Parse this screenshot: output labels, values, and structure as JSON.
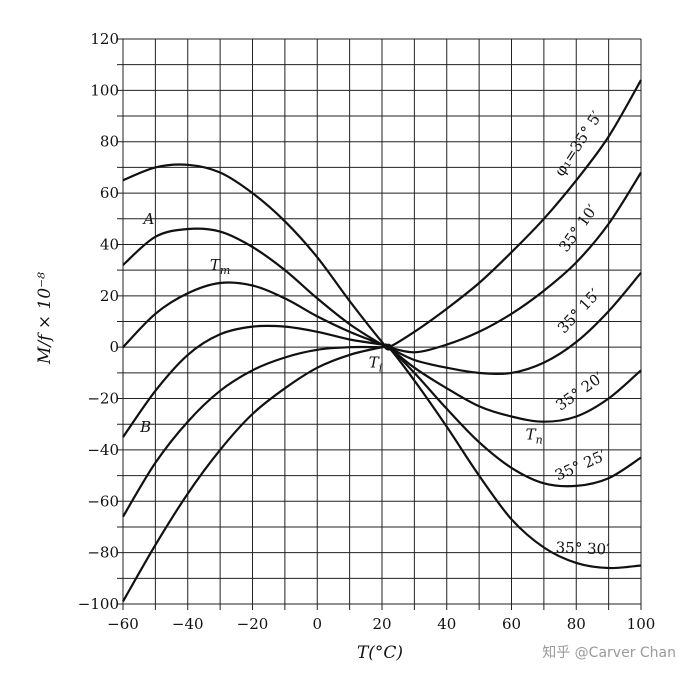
{
  "chart_data": {
    "type": "line",
    "title": "",
    "xlabel": "T(°C)",
    "ylabel": "M/f × 10⁻⁸",
    "xlim": [
      -60,
      100
    ],
    "ylim": [
      -100,
      120
    ],
    "x_ticks": [
      -60,
      -40,
      -20,
      0,
      20,
      40,
      60,
      80,
      100
    ],
    "x_tick_labels": [
      "−60",
      "−40",
      "−20",
      "0",
      "20",
      "40",
      "60",
      "80",
      "100"
    ],
    "y_ticks": [
      120,
      100,
      80,
      60,
      40,
      20,
      0,
      -20,
      -40,
      -60,
      -80,
      -100
    ],
    "y_tick_labels": [
      "120",
      "100",
      "80",
      "60",
      "40",
      "20",
      "0",
      "−20",
      "−40",
      "−60",
      "−80",
      "−100"
    ],
    "grid": true,
    "series": [
      {
        "name": "φ₁=35° 5′",
        "x": [
          -60,
          -50,
          -40,
          -30,
          -20,
          -10,
          0,
          10,
          20,
          22,
          30,
          40,
          50,
          60,
          70,
          80,
          90,
          100
        ],
        "y": [
          65,
          70,
          71,
          68,
          60,
          49,
          35,
          18,
          2,
          0,
          6,
          15,
          25,
          37,
          50,
          65,
          82,
          104
        ]
      },
      {
        "name": "35° 10′",
        "x": [
          -60,
          -50,
          -40,
          -30,
          -20,
          -10,
          0,
          10,
          20,
          22,
          30,
          40,
          50,
          60,
          70,
          80,
          90,
          100
        ],
        "y": [
          32,
          43,
          46,
          45,
          39,
          30,
          19,
          9,
          1,
          0,
          -2,
          1,
          6,
          13,
          22,
          33,
          48,
          68
        ]
      },
      {
        "name": "35° 15′",
        "x": [
          -60,
          -50,
          -40,
          -30,
          -20,
          -10,
          0,
          10,
          20,
          22,
          30,
          40,
          50,
          60,
          70,
          80,
          90,
          100
        ],
        "y": [
          0,
          13,
          21,
          25,
          24,
          19,
          12,
          6,
          1,
          0,
          -5,
          -8,
          -10,
          -10,
          -6,
          2,
          14,
          29
        ]
      },
      {
        "name": "35° 20′",
        "x": [
          -60,
          -50,
          -40,
          -30,
          -20,
          -10,
          0,
          10,
          20,
          22,
          30,
          40,
          50,
          60,
          70,
          80,
          90,
          100
        ],
        "y": [
          -35,
          -17,
          -3,
          5,
          8,
          8,
          6,
          3,
          1,
          0,
          -8,
          -16,
          -23,
          -27,
          -29,
          -27,
          -20,
          -9
        ]
      },
      {
        "name": "35° 25′",
        "x": [
          -60,
          -50,
          -40,
          -30,
          -20,
          -10,
          0,
          10,
          20,
          22,
          30,
          40,
          50,
          60,
          70,
          80,
          90,
          100
        ],
        "y": [
          -66,
          -45,
          -29,
          -17,
          -9,
          -4,
          -1,
          0,
          0,
          0,
          -10,
          -24,
          -37,
          -47,
          -53,
          -54,
          -51,
          -43
        ]
      },
      {
        "name": "35° 30′",
        "x": [
          -60,
          -50,
          -40,
          -30,
          -20,
          -10,
          0,
          10,
          20,
          22,
          30,
          40,
          50,
          60,
          70,
          80,
          90,
          100
        ],
        "y": [
          -99,
          -77,
          -57,
          -40,
          -26,
          -16,
          -8,
          -3,
          0,
          0,
          -13,
          -31,
          -50,
          -67,
          -78,
          -84,
          -86,
          -85
        ]
      }
    ],
    "annotations": [
      {
        "text": "A",
        "x": -52,
        "y": 48
      },
      {
        "text": "T",
        "sub": "m",
        "x": -30,
        "y": 30
      },
      {
        "text": "B",
        "x": -53,
        "y": -33
      },
      {
        "text": "T",
        "sub": "i",
        "x": 18,
        "y": -8
      },
      {
        "text": "T",
        "sub": "n",
        "x": 67,
        "y": -36
      }
    ]
  },
  "watermark": "知乎 @Carver Chan"
}
